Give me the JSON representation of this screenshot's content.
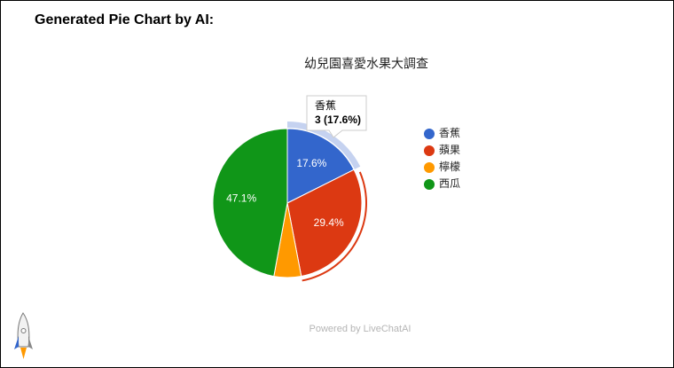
{
  "header": {
    "title": "Generated Pie Chart by AI:"
  },
  "chart_data": {
    "type": "pie",
    "title": "幼兒園喜愛水果大調查",
    "categories": [
      "香蕉",
      "蘋果",
      "檸檬",
      "西瓜"
    ],
    "values": [
      17.6,
      29.4,
      5.9,
      47.1
    ],
    "value_labels": [
      "17.6%",
      "29.4%",
      null,
      "47.1%"
    ],
    "colors": [
      "#3366cc",
      "#dc3912",
      "#ff9900",
      "#109618"
    ],
    "legend": "right",
    "tooltip": {
      "title": "香蕉",
      "text": "3 (17.6%)"
    }
  },
  "footer": {
    "text": "Powered by LiveChatAI"
  }
}
